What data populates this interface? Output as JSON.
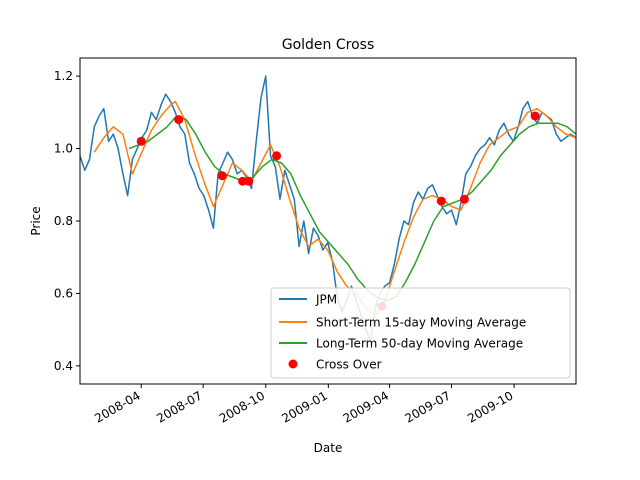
{
  "chart_data": {
    "type": "line",
    "title": "Golden Cross",
    "xlabel": "Date",
    "ylabel": "Price",
    "x_range": [
      "2008-01-02",
      "2009-12-31"
    ],
    "ylim": [
      0.35,
      1.25
    ],
    "x_ticks": [
      {
        "date": "2008-04-01",
        "label": "2008-04"
      },
      {
        "date": "2008-07-01",
        "label": "2008-07"
      },
      {
        "date": "2008-10-01",
        "label": "2008-10"
      },
      {
        "date": "2009-01-01",
        "label": "2009-01"
      },
      {
        "date": "2009-04-01",
        "label": "2009-04"
      },
      {
        "date": "2009-07-01",
        "label": "2009-07"
      },
      {
        "date": "2009-10-01",
        "label": "2009-10"
      }
    ],
    "y_ticks": [
      {
        "value": 0.4,
        "label": "0.4"
      },
      {
        "value": 0.6,
        "label": "0.6"
      },
      {
        "value": 0.8,
        "label": "0.8"
      },
      {
        "value": 1.0,
        "label": "1.0"
      },
      {
        "value": 1.2,
        "label": "1.2"
      }
    ],
    "legend_position": "bottom-right",
    "grid": false,
    "series": [
      {
        "name": "JPM",
        "color": "#1f77b4",
        "points": [
          [
            "2008-01-02",
            0.98
          ],
          [
            "2008-01-09",
            0.94
          ],
          [
            "2008-01-16",
            0.97
          ],
          [
            "2008-01-23",
            1.06
          ],
          [
            "2008-01-30",
            1.09
          ],
          [
            "2008-02-06",
            1.11
          ],
          [
            "2008-02-13",
            1.02
          ],
          [
            "2008-02-20",
            1.04
          ],
          [
            "2008-02-27",
            1.0
          ],
          [
            "2008-03-05",
            0.93
          ],
          [
            "2008-03-12",
            0.87
          ],
          [
            "2008-03-19",
            0.97
          ],
          [
            "2008-03-26",
            1.0
          ],
          [
            "2008-04-02",
            1.03
          ],
          [
            "2008-04-09",
            1.05
          ],
          [
            "2008-04-16",
            1.1
          ],
          [
            "2008-04-23",
            1.08
          ],
          [
            "2008-04-30",
            1.12
          ],
          [
            "2008-05-07",
            1.15
          ],
          [
            "2008-05-14",
            1.13
          ],
          [
            "2008-05-21",
            1.1
          ],
          [
            "2008-05-28",
            1.06
          ],
          [
            "2008-06-04",
            1.04
          ],
          [
            "2008-06-11",
            0.96
          ],
          [
            "2008-06-18",
            0.93
          ],
          [
            "2008-06-25",
            0.89
          ],
          [
            "2008-07-02",
            0.87
          ],
          [
            "2008-07-09",
            0.83
          ],
          [
            "2008-07-16",
            0.78
          ],
          [
            "2008-07-23",
            0.93
          ],
          [
            "2008-07-30",
            0.96
          ],
          [
            "2008-08-06",
            0.99
          ],
          [
            "2008-08-13",
            0.97
          ],
          [
            "2008-08-20",
            0.93
          ],
          [
            "2008-08-27",
            0.94
          ],
          [
            "2008-09-03",
            0.92
          ],
          [
            "2008-09-10",
            0.89
          ],
          [
            "2008-09-17",
            1.02
          ],
          [
            "2008-09-24",
            1.14
          ],
          [
            "2008-10-01",
            1.2
          ],
          [
            "2008-10-08",
            0.98
          ],
          [
            "2008-10-15",
            0.95
          ],
          [
            "2008-10-22",
            0.86
          ],
          [
            "2008-10-29",
            0.94
          ],
          [
            "2008-11-05",
            0.9
          ],
          [
            "2008-11-12",
            0.86
          ],
          [
            "2008-11-19",
            0.73
          ],
          [
            "2008-11-26",
            0.8
          ],
          [
            "2008-12-03",
            0.71
          ],
          [
            "2008-12-10",
            0.78
          ],
          [
            "2008-12-17",
            0.76
          ],
          [
            "2008-12-24",
            0.72
          ],
          [
            "2008-12-31",
            0.74
          ],
          [
            "2009-01-07",
            0.69
          ],
          [
            "2009-01-14",
            0.59
          ],
          [
            "2009-01-21",
            0.55
          ],
          [
            "2009-01-28",
            0.58
          ],
          [
            "2009-02-04",
            0.62
          ],
          [
            "2009-02-11",
            0.58
          ],
          [
            "2009-02-18",
            0.54
          ],
          [
            "2009-02-25",
            0.5
          ],
          [
            "2009-03-04",
            0.47
          ],
          [
            "2009-03-11",
            0.56
          ],
          [
            "2009-03-18",
            0.6
          ],
          [
            "2009-03-25",
            0.62
          ],
          [
            "2009-04-01",
            0.63
          ],
          [
            "2009-04-08",
            0.68
          ],
          [
            "2009-04-15",
            0.75
          ],
          [
            "2009-04-22",
            0.8
          ],
          [
            "2009-04-29",
            0.79
          ],
          [
            "2009-05-06",
            0.85
          ],
          [
            "2009-05-13",
            0.88
          ],
          [
            "2009-05-20",
            0.86
          ],
          [
            "2009-05-27",
            0.89
          ],
          [
            "2009-06-03",
            0.9
          ],
          [
            "2009-06-10",
            0.87
          ],
          [
            "2009-06-17",
            0.84
          ],
          [
            "2009-06-24",
            0.82
          ],
          [
            "2009-07-01",
            0.83
          ],
          [
            "2009-07-08",
            0.79
          ],
          [
            "2009-07-15",
            0.85
          ],
          [
            "2009-07-22",
            0.93
          ],
          [
            "2009-07-29",
            0.95
          ],
          [
            "2009-08-05",
            0.98
          ],
          [
            "2009-08-12",
            1.0
          ],
          [
            "2009-08-19",
            1.01
          ],
          [
            "2009-08-26",
            1.03
          ],
          [
            "2009-09-02",
            1.01
          ],
          [
            "2009-09-09",
            1.05
          ],
          [
            "2009-09-16",
            1.07
          ],
          [
            "2009-09-23",
            1.04
          ],
          [
            "2009-09-30",
            1.02
          ],
          [
            "2009-10-07",
            1.06
          ],
          [
            "2009-10-14",
            1.11
          ],
          [
            "2009-10-21",
            1.13
          ],
          [
            "2009-10-28",
            1.09
          ],
          [
            "2009-11-04",
            1.07
          ],
          [
            "2009-11-11",
            1.1
          ],
          [
            "2009-11-18",
            1.09
          ],
          [
            "2009-11-25",
            1.08
          ],
          [
            "2009-12-02",
            1.04
          ],
          [
            "2009-12-09",
            1.02
          ],
          [
            "2009-12-16",
            1.03
          ],
          [
            "2009-12-23",
            1.04
          ],
          [
            "2009-12-31",
            1.03
          ]
        ]
      },
      {
        "name": "Short-Term 15-day Moving Average",
        "color": "#ff7f0e",
        "points": [
          [
            "2008-01-23",
            0.99
          ],
          [
            "2008-02-06",
            1.03
          ],
          [
            "2008-02-20",
            1.06
          ],
          [
            "2008-03-05",
            1.04
          ],
          [
            "2008-03-19",
            0.93
          ],
          [
            "2008-04-02",
            0.99
          ],
          [
            "2008-04-16",
            1.05
          ],
          [
            "2008-04-30",
            1.09
          ],
          [
            "2008-05-14",
            1.12
          ],
          [
            "2008-05-21",
            1.13
          ],
          [
            "2008-06-04",
            1.08
          ],
          [
            "2008-06-18",
            0.99
          ],
          [
            "2008-07-02",
            0.91
          ],
          [
            "2008-07-16",
            0.84
          ],
          [
            "2008-07-30",
            0.9
          ],
          [
            "2008-08-13",
            0.96
          ],
          [
            "2008-08-27",
            0.94
          ],
          [
            "2008-09-10",
            0.91
          ],
          [
            "2008-09-24",
            0.96
          ],
          [
            "2008-10-08",
            1.01
          ],
          [
            "2008-10-22",
            0.95
          ],
          [
            "2008-11-05",
            0.86
          ],
          [
            "2008-11-19",
            0.78
          ],
          [
            "2008-12-03",
            0.73
          ],
          [
            "2008-12-17",
            0.75
          ],
          [
            "2008-12-31",
            0.72
          ],
          [
            "2009-01-14",
            0.66
          ],
          [
            "2009-01-28",
            0.62
          ],
          [
            "2009-02-11",
            0.6
          ],
          [
            "2009-02-25",
            0.56
          ],
          [
            "2009-03-11",
            0.54
          ],
          [
            "2009-03-25",
            0.58
          ],
          [
            "2009-04-08",
            0.66
          ],
          [
            "2009-04-22",
            0.74
          ],
          [
            "2009-05-06",
            0.81
          ],
          [
            "2009-05-20",
            0.86
          ],
          [
            "2009-06-03",
            0.87
          ],
          [
            "2009-06-17",
            0.86
          ],
          [
            "2009-07-01",
            0.84
          ],
          [
            "2009-07-15",
            0.83
          ],
          [
            "2009-07-29",
            0.89
          ],
          [
            "2009-08-12",
            0.96
          ],
          [
            "2009-08-26",
            1.01
          ],
          [
            "2009-09-09",
            1.03
          ],
          [
            "2009-09-23",
            1.05
          ],
          [
            "2009-10-07",
            1.06
          ],
          [
            "2009-10-21",
            1.1
          ],
          [
            "2009-11-04",
            1.11
          ],
          [
            "2009-11-18",
            1.09
          ],
          [
            "2009-12-02",
            1.06
          ],
          [
            "2009-12-16",
            1.04
          ],
          [
            "2009-12-31",
            1.03
          ]
        ]
      },
      {
        "name": "Long-Term 50-day Moving Average",
        "color": "#2ca02c",
        "points": [
          [
            "2008-03-14",
            1.0
          ],
          [
            "2008-03-28",
            1.01
          ],
          [
            "2008-04-11",
            1.02
          ],
          [
            "2008-04-25",
            1.04
          ],
          [
            "2008-05-09",
            1.06
          ],
          [
            "2008-05-23",
            1.09
          ],
          [
            "2008-06-06",
            1.08
          ],
          [
            "2008-06-20",
            1.04
          ],
          [
            "2008-07-04",
            0.99
          ],
          [
            "2008-07-18",
            0.95
          ],
          [
            "2008-08-01",
            0.93
          ],
          [
            "2008-08-15",
            0.92
          ],
          [
            "2008-08-29",
            0.91
          ],
          [
            "2008-09-12",
            0.92
          ],
          [
            "2008-09-26",
            0.95
          ],
          [
            "2008-10-10",
            0.97
          ],
          [
            "2008-10-24",
            0.96
          ],
          [
            "2008-11-07",
            0.93
          ],
          [
            "2008-11-21",
            0.87
          ],
          [
            "2008-12-05",
            0.82
          ],
          [
            "2008-12-19",
            0.77
          ],
          [
            "2009-01-02",
            0.74
          ],
          [
            "2009-01-16",
            0.71
          ],
          [
            "2009-01-30",
            0.68
          ],
          [
            "2009-02-13",
            0.64
          ],
          [
            "2009-02-27",
            0.61
          ],
          [
            "2009-03-13",
            0.59
          ],
          [
            "2009-03-27",
            0.58
          ],
          [
            "2009-04-10",
            0.59
          ],
          [
            "2009-04-24",
            0.63
          ],
          [
            "2009-05-08",
            0.68
          ],
          [
            "2009-05-22",
            0.74
          ],
          [
            "2009-06-05",
            0.8
          ],
          [
            "2009-06-19",
            0.84
          ],
          [
            "2009-07-03",
            0.85
          ],
          [
            "2009-07-17",
            0.86
          ],
          [
            "2009-07-31",
            0.88
          ],
          [
            "2009-08-14",
            0.91
          ],
          [
            "2009-08-28",
            0.94
          ],
          [
            "2009-09-11",
            0.98
          ],
          [
            "2009-09-25",
            1.01
          ],
          [
            "2009-10-09",
            1.04
          ],
          [
            "2009-10-23",
            1.06
          ],
          [
            "2009-11-06",
            1.07
          ],
          [
            "2009-11-20",
            1.07
          ],
          [
            "2009-12-04",
            1.07
          ],
          [
            "2009-12-18",
            1.06
          ],
          [
            "2009-12-31",
            1.04
          ]
        ]
      }
    ],
    "markers": {
      "name": "Cross Over",
      "color": "#ff0000",
      "points": [
        [
          "2008-04-01",
          1.02
        ],
        [
          "2008-05-26",
          1.08
        ],
        [
          "2008-07-29",
          0.925
        ],
        [
          "2008-08-28",
          0.91
        ],
        [
          "2008-09-06",
          0.91
        ],
        [
          "2008-10-17",
          0.98
        ],
        [
          "2009-03-21",
          0.565
        ],
        [
          "2009-06-16",
          0.855
        ],
        [
          "2009-07-20",
          0.86
        ],
        [
          "2009-11-01",
          1.09
        ]
      ]
    }
  }
}
